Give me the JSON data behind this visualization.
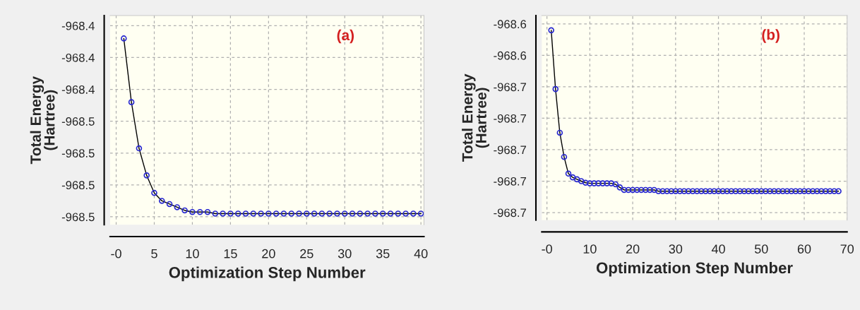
{
  "chart_data": [
    {
      "type": "line",
      "xlabel": "Optimization Step Number",
      "ylabel": "Total Energy\n(Hartree)",
      "annotations": [
        "(a)"
      ],
      "marker": "circle",
      "line_style": "solid",
      "grid": true,
      "x": [
        1,
        2,
        3,
        4,
        5,
        6,
        7,
        8,
        9,
        10,
        11,
        12,
        13,
        14,
        15,
        16,
        17,
        18,
        19,
        20,
        21,
        22,
        23,
        24,
        25,
        26,
        27,
        28,
        29,
        30,
        31,
        32,
        33,
        34,
        35,
        36,
        37,
        38,
        39,
        40
      ],
      "series": [
        {
          "color": "#2a2ad0",
          "values": [
            -968.408,
            -968.448,
            -968.477,
            -968.494,
            -968.505,
            -968.51,
            -968.512,
            -968.514,
            -968.516,
            -968.517,
            -968.517,
            -968.517,
            -968.518,
            -968.518,
            -968.518,
            -968.518,
            -968.518,
            -968.518,
            -968.518,
            -968.518,
            -968.518,
            -968.518,
            -968.518,
            -968.518,
            -968.518,
            -968.518,
            -968.518,
            -968.518,
            -968.518,
            -968.518,
            -968.518,
            -968.518,
            -968.518,
            -968.518,
            -968.518,
            -968.518,
            -968.518,
            -968.518,
            -968.518,
            -968.518
          ]
        }
      ],
      "xlim": [
        -0.8,
        40.4
      ],
      "ylim": [
        -968.525,
        -968.3936
      ],
      "xticks": [
        {
          "value": 0,
          "label": "-0"
        },
        5,
        10,
        15,
        20,
        25,
        30,
        35,
        40
      ],
      "yticks": [
        {
          "value": -968.4,
          "label": "-968.4"
        },
        {
          "value": -968.42,
          "label": "-968.4"
        },
        {
          "value": -968.44,
          "label": "-968.4"
        },
        {
          "value": -968.46,
          "label": "-968.5"
        },
        {
          "value": -968.48,
          "label": "-968.5"
        },
        {
          "value": -968.5,
          "label": "-968.5"
        },
        {
          "value": -968.52,
          "label": "-968.5"
        }
      ]
    },
    {
      "type": "line",
      "xlabel": "Optimization Step Number",
      "ylabel": "Total Energy\n(Hartree)",
      "annotations": [
        "(b)"
      ],
      "marker": "circle",
      "line_style": "solid",
      "grid": true,
      "x": [
        1,
        2,
        3,
        4,
        5,
        6,
        7,
        8,
        9,
        10,
        11,
        12,
        13,
        14,
        15,
        16,
        17,
        18,
        19,
        20,
        21,
        22,
        23,
        24,
        25,
        26,
        27,
        28,
        29,
        30,
        31,
        32,
        33,
        34,
        35,
        36,
        37,
        38,
        39,
        40,
        41,
        42,
        43,
        44,
        45,
        46,
        47,
        48,
        49,
        50,
        51,
        52,
        53,
        54,
        55,
        56,
        57,
        58,
        59,
        60,
        61,
        62,
        63,
        64,
        65,
        66,
        67,
        68
      ],
      "series": [
        {
          "color": "#2a2ad0",
          "values": [
            -968.632,
            -968.6507,
            -968.6646,
            -968.6723,
            -968.6776,
            -968.6788,
            -968.6794,
            -968.68,
            -968.6805,
            -968.6807,
            -968.6807,
            -968.6807,
            -968.6807,
            -968.6807,
            -968.6807,
            -968.681,
            -968.682,
            -968.6828,
            -968.6828,
            -968.6828,
            -968.6828,
            -968.6828,
            -968.6828,
            -968.6828,
            -968.6828,
            -968.6832,
            -968.6832,
            -968.6832,
            -968.6832,
            -968.6832,
            -968.6832,
            -968.6832,
            -968.6832,
            -968.6832,
            -968.6832,
            -968.6832,
            -968.6832,
            -968.6832,
            -968.6832,
            -968.6832,
            -968.6832,
            -968.6832,
            -968.6832,
            -968.6832,
            -968.6832,
            -968.6832,
            -968.6832,
            -968.6832,
            -968.6832,
            -968.6832,
            -968.6832,
            -968.6832,
            -968.6832,
            -968.6832,
            -968.6832,
            -968.6832,
            -968.6832,
            -968.6832,
            -968.6832,
            -968.6832,
            -968.6832,
            -968.6832,
            -968.6832,
            -968.6832,
            -968.6832,
            -968.6832,
            -968.6832,
            -968.6832
          ]
        }
      ],
      "xlim": [
        -1.2,
        70
      ],
      "ylim": [
        -968.6924,
        -968.6273
      ],
      "xticks": [
        {
          "value": 0,
          "label": "-0"
        },
        10,
        20,
        30,
        40,
        50,
        60,
        70
      ],
      "yticks": [
        {
          "value": -968.63,
          "label": "-968.6"
        },
        {
          "value": -968.64,
          "label": "-968.6"
        },
        {
          "value": -968.65,
          "label": "-968.7"
        },
        {
          "value": -968.66,
          "label": "-968.7"
        },
        {
          "value": -968.67,
          "label": "-968.7"
        },
        {
          "value": -968.68,
          "label": "-968.7"
        },
        {
          "value": -968.69,
          "label": "-968.7"
        }
      ]
    }
  ]
}
